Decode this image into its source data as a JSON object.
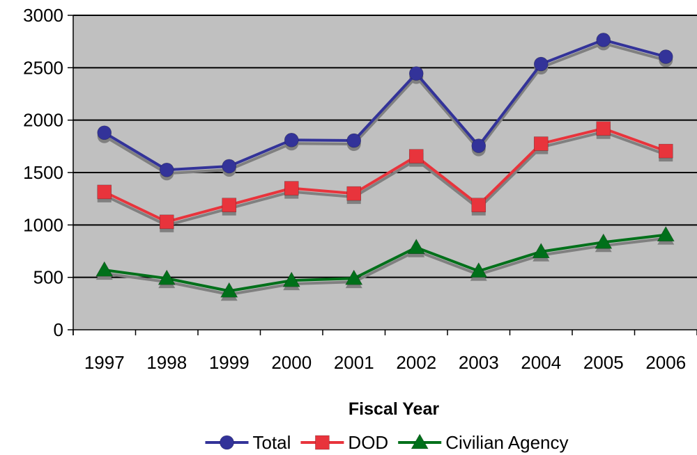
{
  "chart_data": {
    "type": "line",
    "title": "",
    "xlabel": "Fiscal Year",
    "ylabel": "",
    "categories": [
      "1997",
      "1998",
      "1999",
      "2000",
      "2001",
      "2002",
      "2003",
      "2004",
      "2005",
      "2006"
    ],
    "ylim": [
      0,
      3000
    ],
    "yticks": [
      0,
      500,
      1000,
      1500,
      2000,
      2500,
      3000
    ],
    "grid": true,
    "legend_position": "bottom",
    "plot_background": "#c0c0c0",
    "series": [
      {
        "name": "Total",
        "marker": "circle",
        "color": "#333399",
        "values": [
          1880,
          1525,
          1560,
          1810,
          1805,
          2445,
          1755,
          2535,
          2765,
          2605
        ]
      },
      {
        "name": "DOD",
        "marker": "square",
        "color": "#e8343c",
        "values": [
          1315,
          1030,
          1190,
          1350,
          1300,
          1655,
          1190,
          1775,
          1920,
          1705
        ]
      },
      {
        "name": "Civilian Agency",
        "marker": "triangle",
        "color": "#00701a",
        "values": [
          570,
          490,
          370,
          470,
          490,
          785,
          560,
          745,
          835,
          905
        ]
      }
    ]
  }
}
